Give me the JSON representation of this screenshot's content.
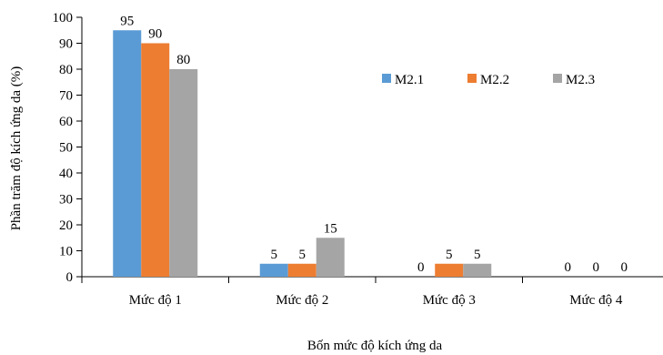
{
  "chart_data": {
    "type": "bar",
    "title": "",
    "xlabel": "Bốn mức độ kích ứng da",
    "ylabel": "Phần trăm độ kích ứng da (%)",
    "ylim": [
      0,
      100
    ],
    "yticks": [
      0,
      10,
      20,
      30,
      40,
      50,
      60,
      70,
      80,
      90,
      100
    ],
    "grid": false,
    "legend_position": "right",
    "categories": [
      "Mức độ 1",
      "Mức độ 2",
      "Mức độ 3",
      "Mức độ 4"
    ],
    "series": [
      {
        "name": "M2.1",
        "color": "#5B9BD5",
        "values": [
          95,
          5,
          0,
          0
        ]
      },
      {
        "name": "M2.2",
        "color": "#ED7D31",
        "values": [
          90,
          5,
          5,
          0
        ]
      },
      {
        "name": "M2.3",
        "color": "#A5A5A5",
        "values": [
          80,
          15,
          5,
          0
        ]
      }
    ]
  }
}
